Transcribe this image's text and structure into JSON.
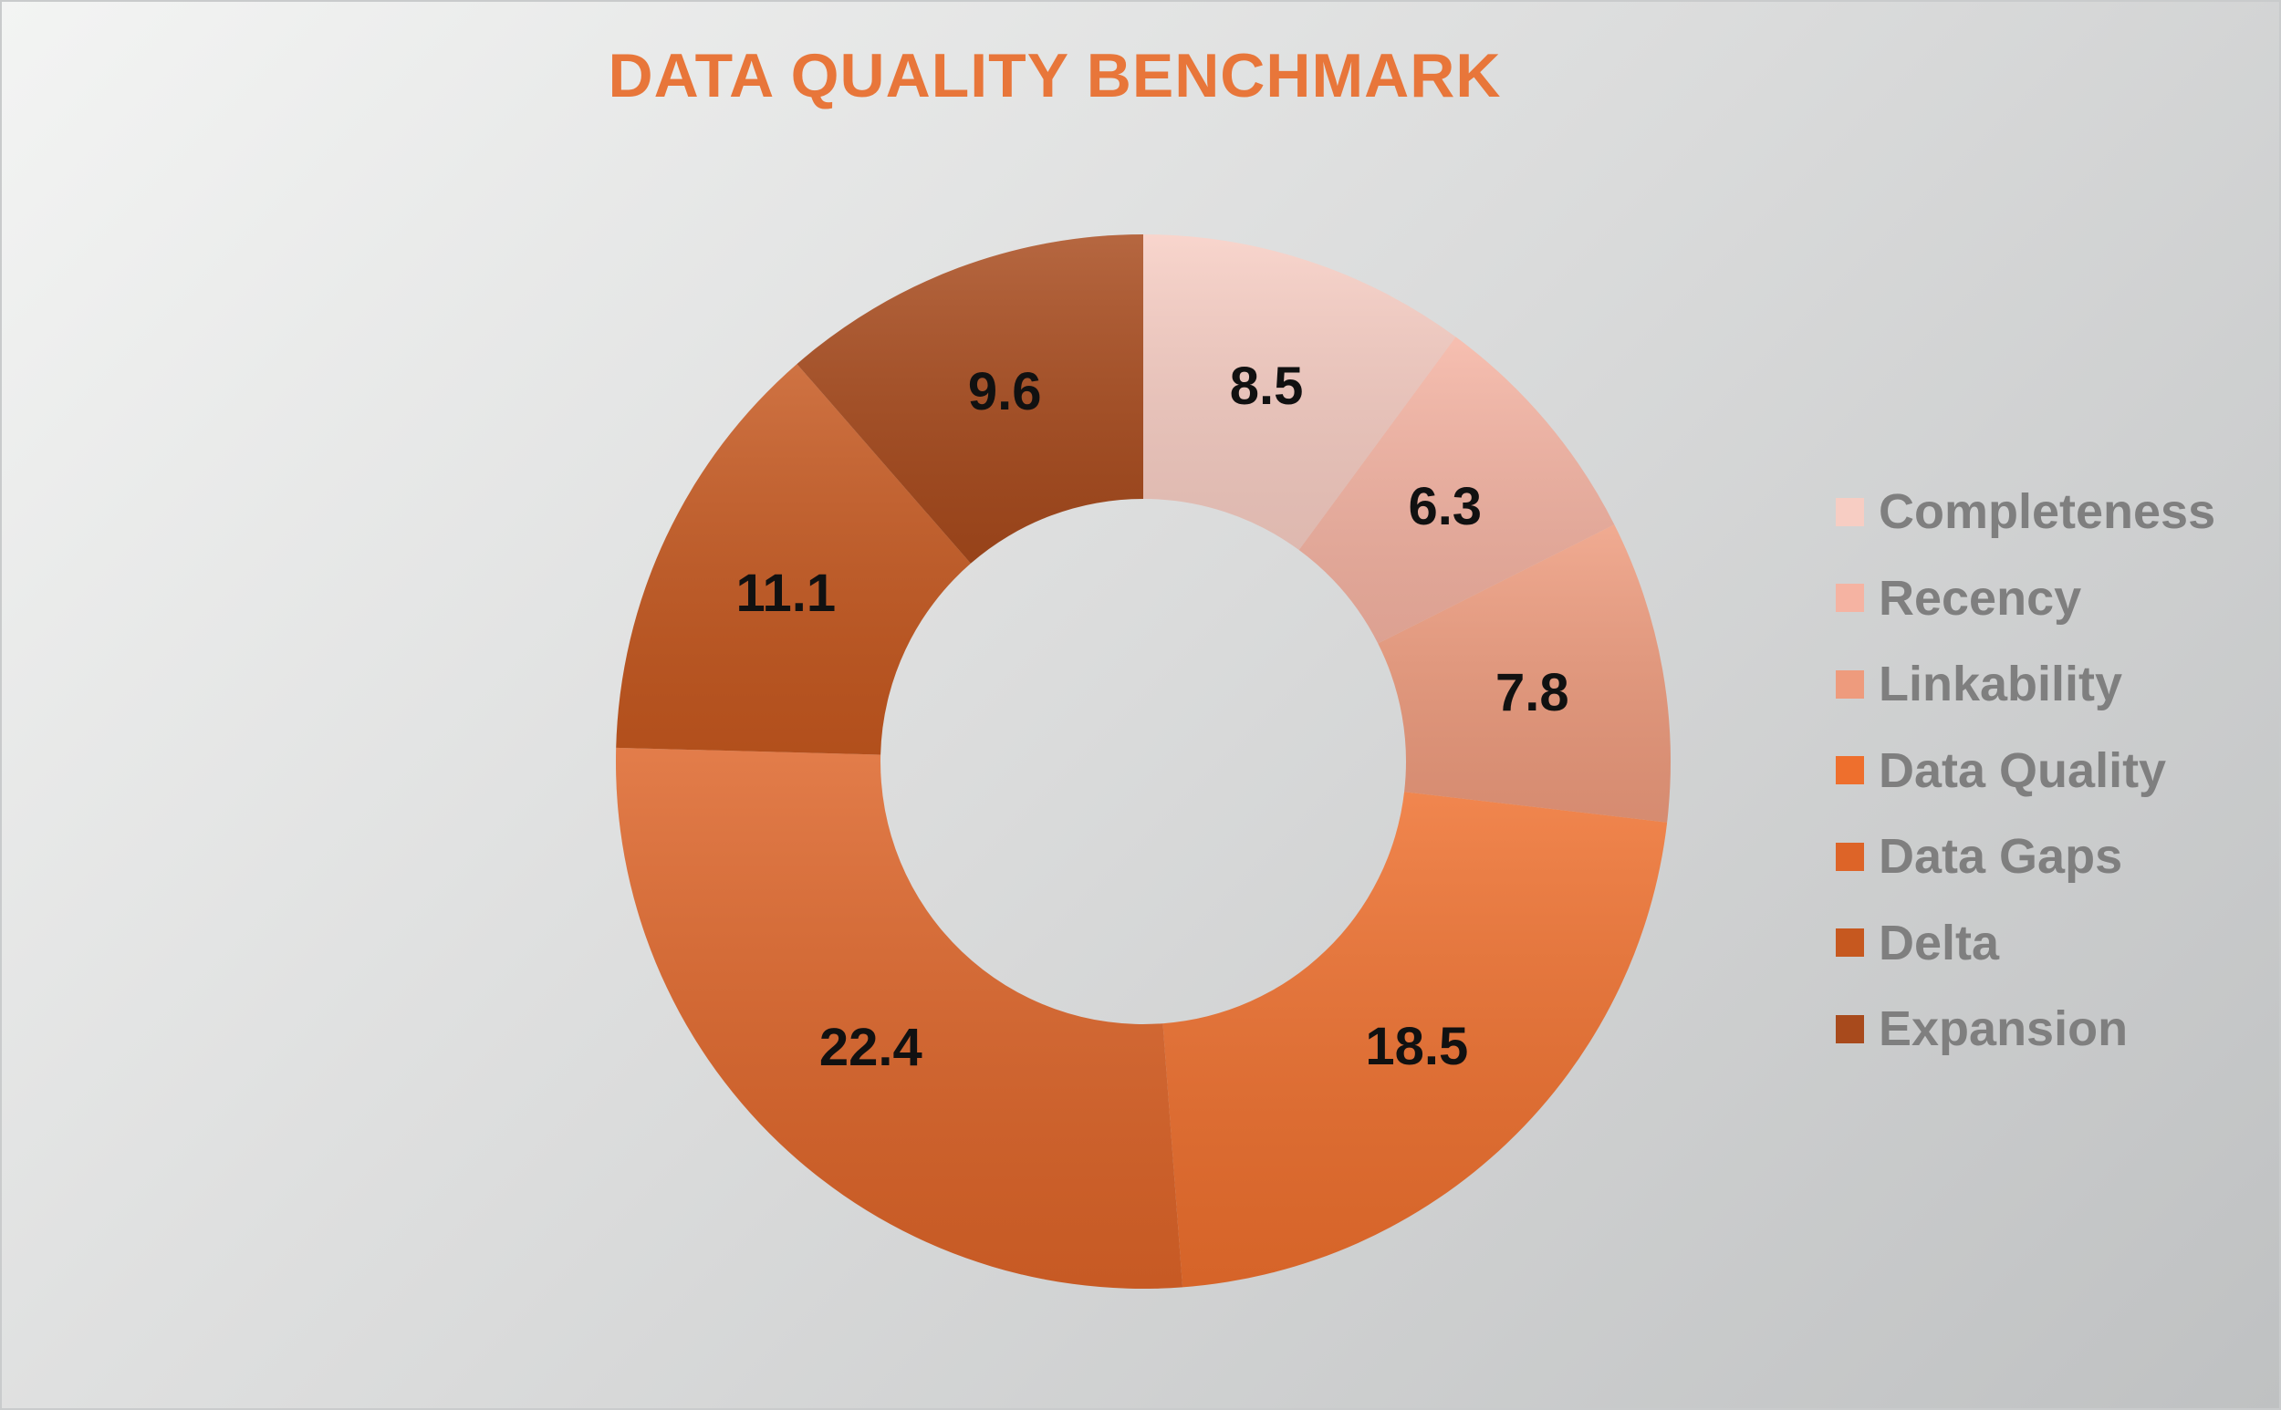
{
  "chart_data": {
    "type": "pie",
    "title": "DATA QUALITY BENCHMARK",
    "categories": [
      "Completeness",
      "Recency",
      "Linkability",
      "Data Quality",
      "Data Gaps",
      "Delta",
      "Expansion"
    ],
    "values": [
      8.5,
      6.3,
      7.8,
      18.5,
      22.4,
      11.1,
      9.6
    ],
    "labels": [
      "8.5",
      "6.3",
      "7.8",
      "18.5",
      "22.4",
      "11.1",
      "9.6"
    ],
    "colors": [
      "#f7cdc3",
      "#f5b3a2",
      "#ee9b7d",
      "#ee6f2d",
      "#dd6428",
      "#c6581f",
      "#a84a1c"
    ],
    "legend_position": "right",
    "donut": true,
    "start_angle_deg": 0,
    "direction": "clockwise"
  }
}
